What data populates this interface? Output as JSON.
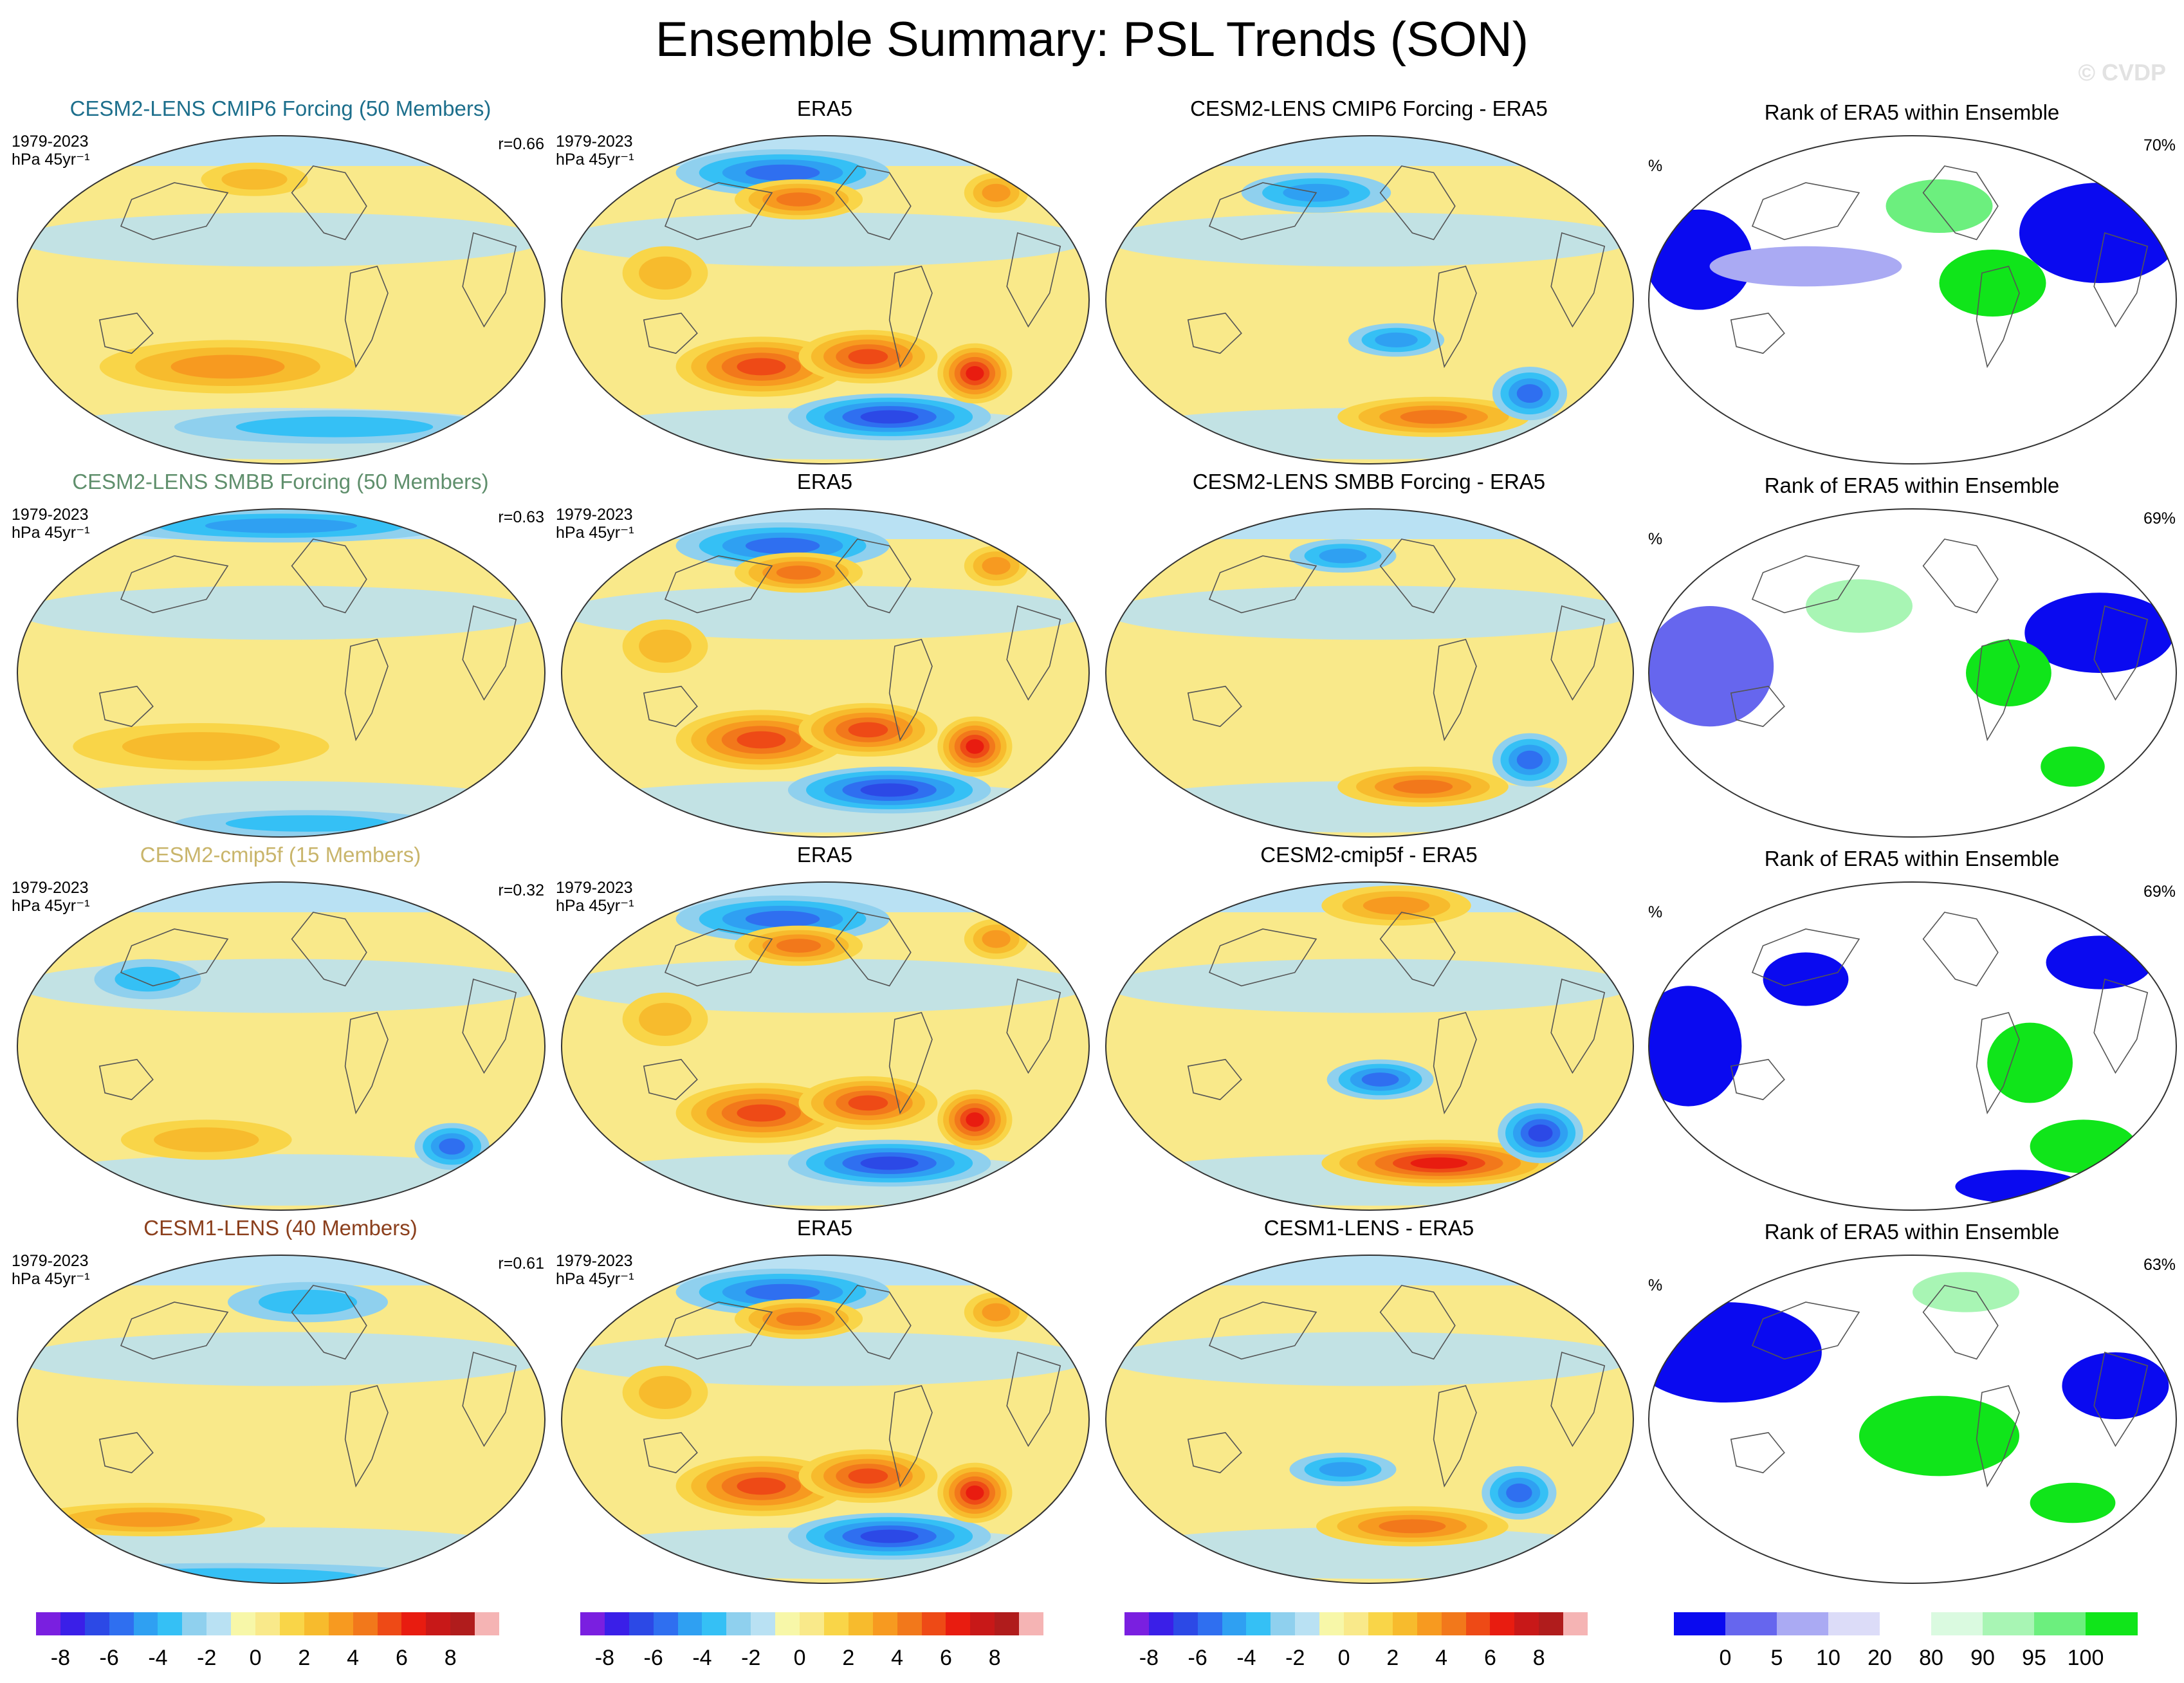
{
  "title": "Ensemble Summary: PSL Trends (SON)",
  "watermark": "© CVDP",
  "chart_data": {
    "type": "heatmap",
    "title": "Ensemble Summary: PSL Trends (SON)",
    "period": "1979-2023",
    "units_trend": "hPa 45yr⁻¹",
    "units_rank": "%",
    "rows": [
      {
        "ensemble": "CESM2-LENS CMIP6 Forcing (50 Members)",
        "ensemble_color": "#1d6f8c",
        "pattern_correlation": "r=0.66",
        "era5_title": "ERA5",
        "diff_title": "CESM2-LENS CMIP6 Forcing - ERA5",
        "rank_title": "Rank of ERA5 within Ensemble",
        "rank_percent": "70%"
      },
      {
        "ensemble": "CESM2-LENS SMBB Forcing (50 Members)",
        "ensemble_color": "#5f8f6c",
        "pattern_correlation": "r=0.63",
        "era5_title": "ERA5",
        "diff_title": "CESM2-LENS SMBB Forcing - ERA5",
        "rank_title": "Rank of ERA5 within Ensemble",
        "rank_percent": "69%"
      },
      {
        "ensemble": "CESM2-cmip5f (15 Members)",
        "ensemble_color": "#c9b56b",
        "pattern_correlation": "r=0.32",
        "era5_title": "ERA5",
        "diff_title": "CESM2-cmip5f - ERA5",
        "rank_title": "Rank of ERA5 within Ensemble",
        "rank_percent": "69%"
      },
      {
        "ensemble": "CESM1-LENS (40 Members)",
        "ensemble_color": "#8b3f1c",
        "pattern_correlation": "r=0.61",
        "era5_title": "ERA5",
        "diff_title": "CESM1-LENS - ERA5",
        "rank_title": "Rank of ERA5 within Ensemble",
        "rank_percent": "63%"
      }
    ],
    "trend_colorbar": {
      "levels": [
        -9,
        -8,
        -7,
        -6,
        -5,
        -4,
        -3,
        -2,
        -1,
        0,
        1,
        2,
        3,
        4,
        5,
        6,
        7,
        8,
        9
      ],
      "tick_labels": [
        "-8",
        "-6",
        "-4",
        "-2",
        "0",
        "2",
        "4",
        "6",
        "8"
      ],
      "colors": [
        "#7a1fe0",
        "#3a1fe8",
        "#2c49e6",
        "#2f6ff0",
        "#2fa0f2",
        "#35c0f5",
        "#8fd0ee",
        "#b9e1f3",
        "#f7f7a8",
        "#f9e98a",
        "#f9d548",
        "#f7bb2d",
        "#f79a20",
        "#f2781b",
        "#ee4a16",
        "#e81c10",
        "#c81818",
        "#b01c1c",
        "#f5b4b4"
      ]
    },
    "rank_colorbar": {
      "levels": [
        0,
        5,
        10,
        20,
        80,
        90,
        95,
        100
      ],
      "tick_labels": [
        "0",
        "5",
        "10",
        "20",
        "80",
        "90",
        "95",
        "100"
      ],
      "colors": [
        "#0a0af0",
        "#6666ee",
        "#aaaaf3",
        "#dcdcf8",
        "#ffffff",
        "#dafae0",
        "#a8f5b4",
        "#6cef7e",
        "#10e51a"
      ]
    }
  }
}
